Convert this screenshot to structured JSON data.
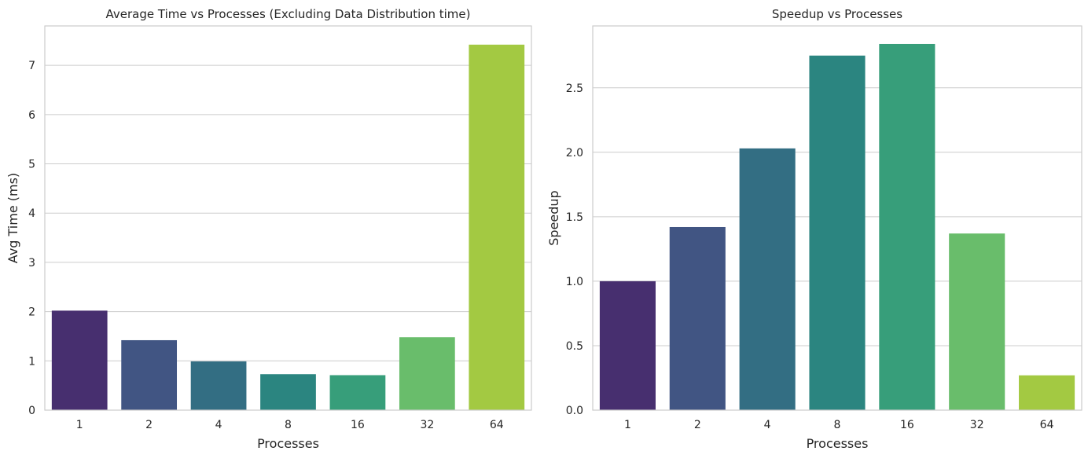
{
  "colors": [
    "#472f6f",
    "#415583",
    "#336e83",
    "#2b8580",
    "#379e7a",
    "#69bd6b",
    "#a3c942"
  ],
  "chart_data": [
    {
      "type": "bar",
      "title": "Average Time vs Processes (Excluding Data Distribution time)",
      "xlabel": "Processes",
      "ylabel": "Avg Time (ms)",
      "categories": [
        "1",
        "2",
        "4",
        "8",
        "16",
        "32",
        "64"
      ],
      "values": [
        2.02,
        1.42,
        0.99,
        0.73,
        0.71,
        1.48,
        7.42
      ],
      "ylim": [
        0,
        7.8
      ],
      "yticks": [
        0,
        1,
        2,
        3,
        4,
        5,
        6,
        7
      ],
      "ytick_labels": [
        "0",
        "1",
        "2",
        "3",
        "4",
        "5",
        "6",
        "7"
      ],
      "grid": "horizontal"
    },
    {
      "type": "bar",
      "title": "Speedup vs Processes",
      "xlabel": "Processes",
      "ylabel": "Speedup",
      "categories": [
        "1",
        "2",
        "4",
        "8",
        "16",
        "32",
        "64"
      ],
      "values": [
        1.0,
        1.42,
        2.03,
        2.75,
        2.84,
        1.37,
        0.27
      ],
      "ylim": [
        0,
        2.98
      ],
      "yticks": [
        0,
        0.5,
        1.0,
        1.5,
        2.0,
        2.5
      ],
      "ytick_labels": [
        "0.0",
        "0.5",
        "1.0",
        "1.5",
        "2.0",
        "2.5"
      ],
      "grid": "horizontal"
    }
  ]
}
